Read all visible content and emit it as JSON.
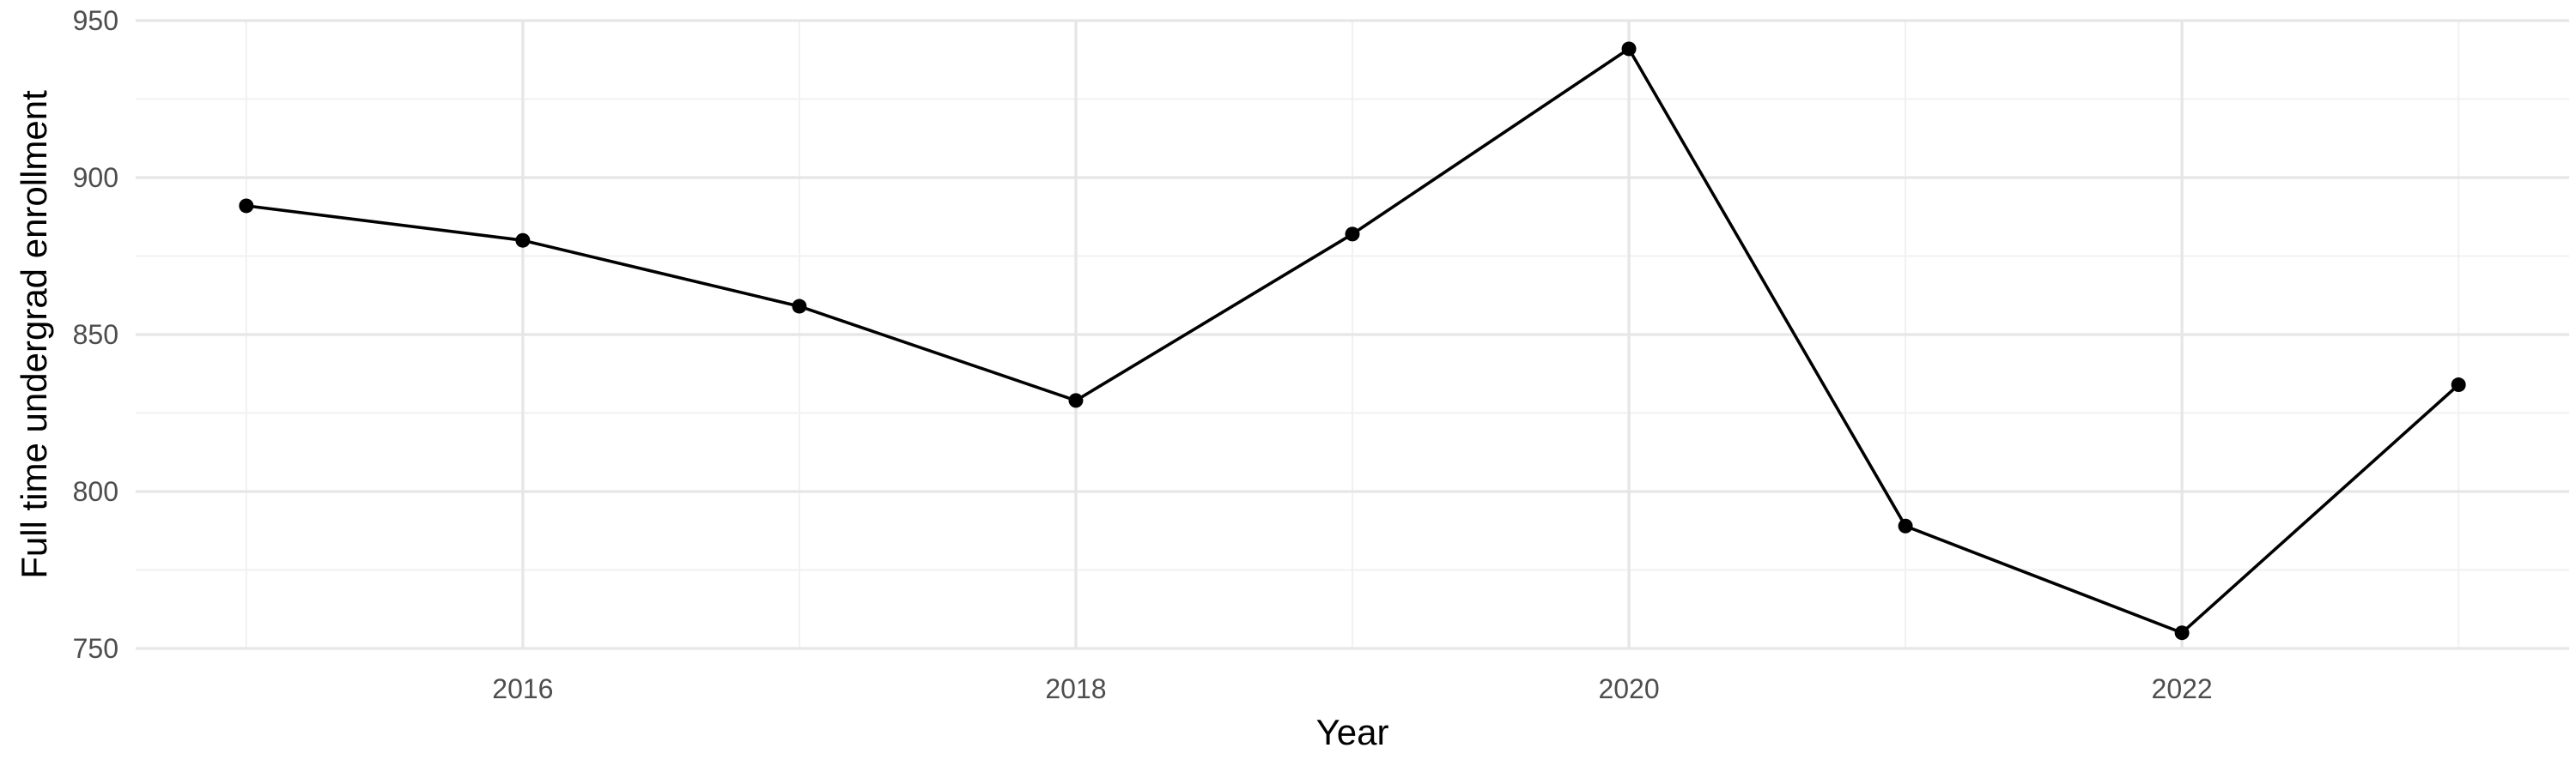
{
  "chart_data": {
    "type": "line",
    "title": "",
    "xlabel": "Year",
    "ylabel": "Full time undergrad enrollment",
    "x": [
      2015,
      2016,
      2017,
      2018,
      2019,
      2020,
      2021,
      2022,
      2023
    ],
    "series": [
      {
        "values": [
          891,
          880,
          859,
          829,
          882,
          941,
          789,
          755,
          834
        ]
      }
    ],
    "xlim": [
      2014.6,
      2023.4
    ],
    "ylim": [
      750,
      950
    ],
    "x_ticks": [
      2016,
      2018,
      2020,
      2022
    ],
    "x_tick_labels": [
      "2016",
      "2018",
      "2020",
      "2022"
    ],
    "y_ticks": [
      750,
      800,
      850,
      900,
      950
    ],
    "y_tick_labels": [
      "750",
      "800",
      "850",
      "900",
      "950"
    ],
    "grid": true,
    "legend": "none",
    "colors": {
      "line": "#000000",
      "point": "#000000",
      "grid": "#e6e6e6",
      "tick_text": "#4d4d4d"
    }
  }
}
